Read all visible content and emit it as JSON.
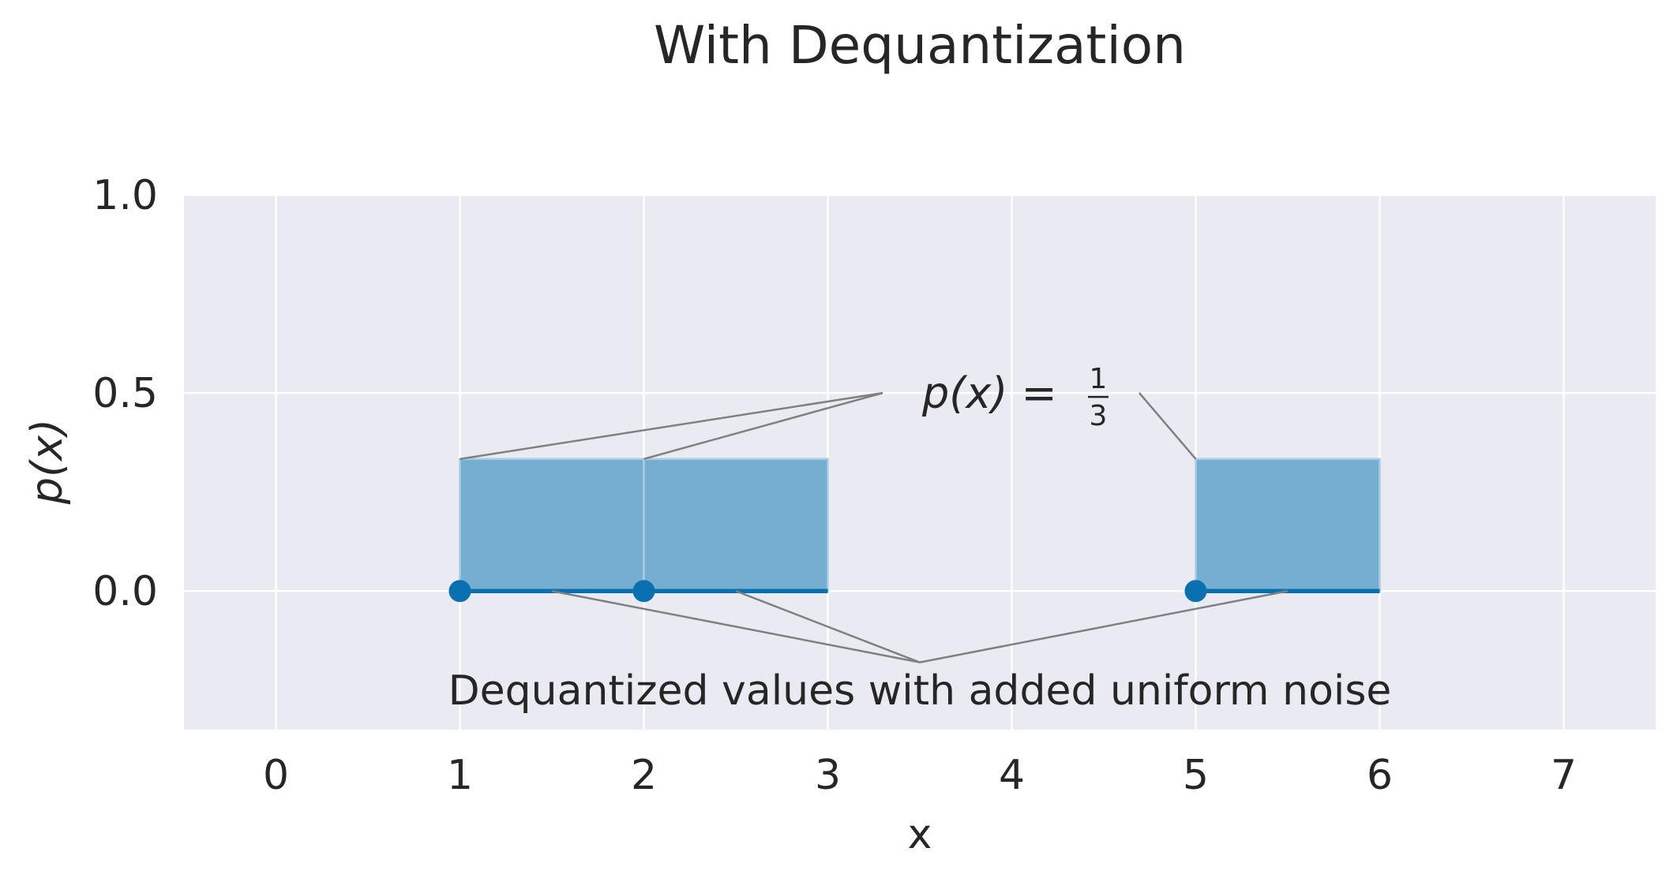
{
  "chart_data": {
    "type": "bar",
    "title": "With Dequantization",
    "xlabel": "x",
    "ylabel": "p(x)",
    "xlim": [
      -0.5,
      7.5
    ],
    "ylim": [
      -0.35,
      1.0
    ],
    "xticks": [
      0,
      1,
      2,
      3,
      4,
      5,
      6,
      7
    ],
    "yticks": [
      0.0,
      0.5,
      1.0
    ],
    "ytick_labels": [
      "0.0",
      "0.5",
      "1.0"
    ],
    "grid": true,
    "bins": [
      {
        "x0": 1,
        "x1": 2,
        "density": 0.3333
      },
      {
        "x0": 2,
        "x1": 3,
        "density": 0.3333
      },
      {
        "x0": 5,
        "x1": 6,
        "density": 0.3333
      }
    ],
    "points": [
      {
        "x": 1,
        "y": 0
      },
      {
        "x": 2,
        "y": 0
      },
      {
        "x": 5,
        "y": 0
      }
    ],
    "segments": [
      {
        "x0": 1,
        "x1": 3,
        "y": 0
      },
      {
        "x0": 5,
        "x1": 6,
        "y": 0
      }
    ],
    "annotations": {
      "density": {
        "text_main": "p(x) = ",
        "frac_num": "1",
        "frac_den": "3",
        "anchor": {
          "x": 3.5,
          "y": 0.5
        },
        "targets": [
          {
            "x": 1,
            "y": 0.3333
          },
          {
            "x": 2,
            "y": 0.3333
          },
          {
            "x": 5,
            "y": 0.3333
          }
        ]
      },
      "noise": {
        "text": "Dequantized values with added uniform noise",
        "anchor": {
          "x": 3.5,
          "y": -0.18
        },
        "targets": [
          {
            "x": 1.5,
            "y": 0
          },
          {
            "x": 2.5,
            "y": 0
          },
          {
            "x": 5.5,
            "y": 0
          }
        ]
      }
    },
    "colors": {
      "background": "#eaeaf2",
      "grid": "#ffffff",
      "bar_fill": "#76aed1",
      "bar_edge": "#a8cce2",
      "series": "#0a70b0",
      "annotation_line": "#808080"
    }
  }
}
